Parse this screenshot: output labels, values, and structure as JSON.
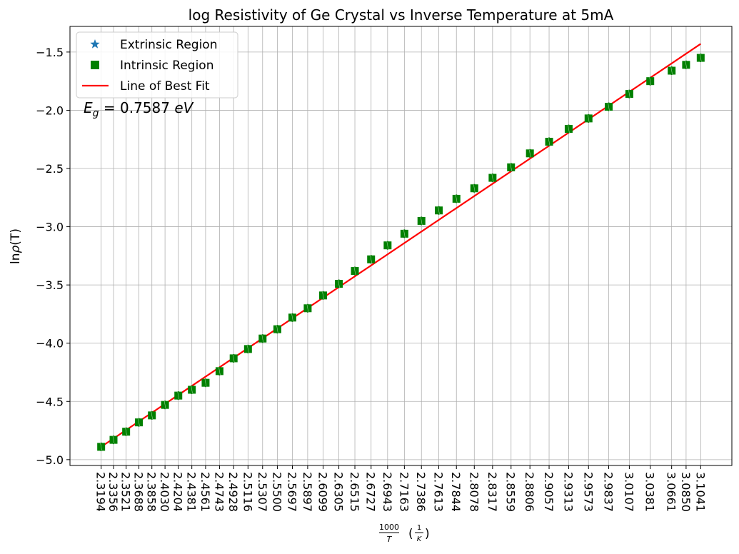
{
  "chart_data": {
    "type": "scatter",
    "title": "log Resistivity of Ge Crystal vs Inverse Temperature at 5mA",
    "xlabel": {
      "numerator": "1000",
      "denominator": "T",
      "unit_numerator": "1",
      "unit_denominator": "K"
    },
    "ylabel": {
      "prefix": "ln",
      "symbol": "ρ",
      "arg": "(T)"
    },
    "grid": true,
    "legend_position": "top-left",
    "yticks": [
      "−5.0",
      "−4.5",
      "−4.0",
      "−3.5",
      "−3.0",
      "−2.5",
      "−2.0",
      "−1.5"
    ],
    "ytick_values": [
      -5.0,
      -4.5,
      -4.0,
      -3.5,
      -3.0,
      -2.5,
      -2.0,
      -1.5
    ],
    "ylim": [
      -5.05,
      -1.28
    ],
    "x": [
      2.3194,
      2.3356,
      2.3521,
      2.3688,
      2.3858,
      2.403,
      2.4204,
      2.4381,
      2.4561,
      2.4743,
      2.4928,
      2.5116,
      2.5307,
      2.55,
      2.5697,
      2.5897,
      2.6099,
      2.6305,
      2.6515,
      2.6727,
      2.6943,
      2.7163,
      2.7386,
      2.7613,
      2.7844,
      2.8078,
      2.8317,
      2.8559,
      2.8806,
      2.9057,
      2.9313,
      2.9573,
      2.9837,
      3.0107,
      3.0381,
      3.0661,
      3.085,
      3.1041
    ],
    "xtick_labels": [
      "2.3194",
      "2.3356",
      "2.3521",
      "2.3688",
      "2.3858",
      "2.4030",
      "2.4204",
      "2.4381",
      "2.4561",
      "2.4743",
      "2.4928",
      "2.5116",
      "2.5307",
      "2.5500",
      "2.5697",
      "2.5897",
      "2.6099",
      "2.6305",
      "2.6515",
      "2.6727",
      "2.6943",
      "2.7163",
      "2.7386",
      "2.7613",
      "2.7844",
      "2.8078",
      "2.8317",
      "2.8559",
      "2.8806",
      "2.9057",
      "2.9313",
      "2.9573",
      "2.9837",
      "3.0107",
      "3.0381",
      "3.0661",
      "3.0850",
      "3.1041"
    ],
    "series": [
      {
        "name": "Extrinsic Region",
        "marker": "star",
        "color": "#1f77b4",
        "x": [],
        "y": []
      },
      {
        "name": "Intrinsic Region",
        "marker": "square",
        "color": "#008000",
        "y": [
          -4.89,
          -4.83,
          -4.76,
          -4.68,
          -4.62,
          -4.53,
          -4.45,
          -4.4,
          -4.34,
          -4.24,
          -4.13,
          -4.05,
          -3.96,
          -3.88,
          -3.78,
          -3.7,
          -3.59,
          -3.49,
          -3.38,
          -3.28,
          -3.16,
          -3.06,
          -2.95,
          -2.86,
          -2.76,
          -2.67,
          -2.58,
          -2.49,
          -2.37,
          -2.27,
          -2.16,
          -2.07,
          -1.97,
          -1.86,
          -1.75,
          -1.66,
          -1.61,
          -1.55
        ]
      },
      {
        "name": "Line of Best Fit",
        "type": "line",
        "color": "#ff0000",
        "x": [
          2.3194,
          3.1041
        ],
        "y": [
          -4.89,
          -1.43
        ]
      }
    ],
    "annotation": {
      "symbol": "E",
      "subscript": "g",
      "text": " = 0.7587 ",
      "unit": "eV"
    }
  }
}
